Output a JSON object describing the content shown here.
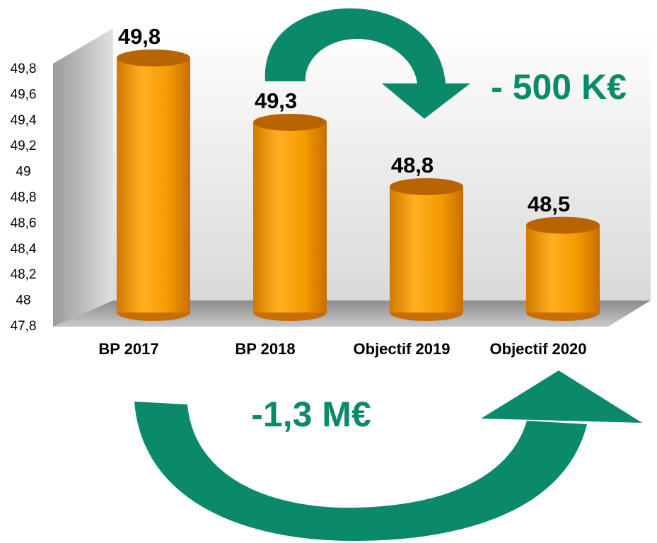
{
  "chart_data": {
    "type": "bar",
    "categories": [
      "BP 2017",
      "BP 2018",
      "Objectif 2019",
      "Objectif 2020"
    ],
    "values": [
      49.8,
      49.3,
      48.8,
      48.5
    ],
    "value_labels": [
      "49,8",
      "49,3",
      "48,8",
      "48,5"
    ],
    "color": "#f59a00",
    "ylim": [
      47.8,
      49.8
    ],
    "yticks": [
      {
        "value": 47.8,
        "label": "47,8"
      },
      48,
      {
        "value": 48.2,
        "label": "48,2"
      },
      {
        "value": 48.4,
        "label": "48,4"
      },
      {
        "value": 48.6,
        "label": "48,6"
      },
      {
        "value": 48.8,
        "label": "48,8"
      },
      49,
      {
        "value": 49.2,
        "label": "49,2"
      },
      {
        "value": 49.4,
        "label": "49,4"
      },
      {
        "value": 49.6,
        "label": "49,6"
      },
      {
        "value": 49.8,
        "label": "49,8"
      }
    ],
    "grid": false,
    "annotations": [
      "- 500 K€",
      "-1,3 M€"
    ]
  }
}
